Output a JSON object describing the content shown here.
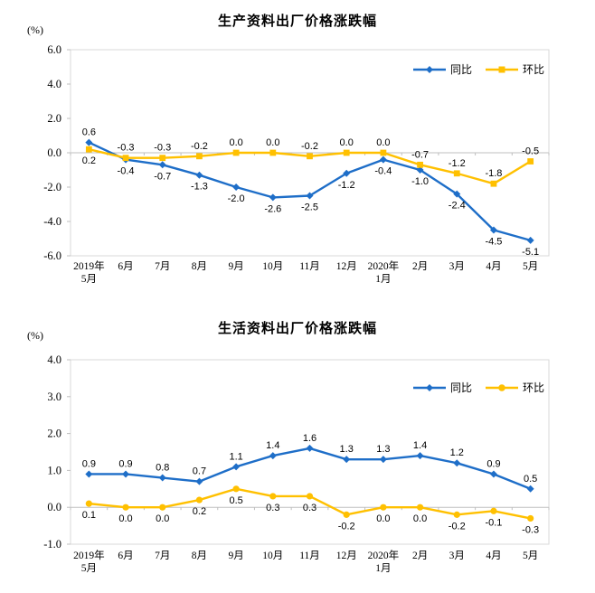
{
  "page": {
    "background": "#ffffff"
  },
  "chart_data": [
    {
      "type": "line",
      "title": "生产资料出厂价格涨跌幅",
      "unit_label": "(%)",
      "categories": [
        "2019年\n5月",
        "6月",
        "7月",
        "8月",
        "9月",
        "10月",
        "11月",
        "12月",
        "2020年\n1月",
        "2月",
        "3月",
        "4月",
        "5月"
      ],
      "series": [
        {
          "name": "同比",
          "color": "#1e6ec8",
          "marker": "diamond",
          "values": [
            0.6,
            -0.4,
            -0.7,
            -1.3,
            -2.0,
            -2.6,
            -2.5,
            -1.2,
            -0.4,
            -1.0,
            -2.4,
            -4.5,
            -5.1
          ]
        },
        {
          "name": "环比",
          "color": "#ffc000",
          "marker": "square",
          "values": [
            0.2,
            -0.3,
            -0.3,
            -0.2,
            0.0,
            0.0,
            -0.2,
            0.0,
            0.0,
            -0.7,
            -1.2,
            -1.8,
            -0.5
          ]
        }
      ],
      "ylim": [
        -6.0,
        6.0
      ],
      "yticks": [
        6.0,
        4.0,
        2.0,
        0.0,
        -2.0,
        -4.0,
        -6.0
      ],
      "grid": false,
      "legend_position": "top-right-inside",
      "axis_color": "#bfbfbf",
      "border_color": "#d9d9d9"
    },
    {
      "type": "line",
      "title": "生活资料出厂价格涨跌幅",
      "unit_label": "(%)",
      "categories": [
        "2019年\n5月",
        "6月",
        "7月",
        "8月",
        "9月",
        "10月",
        "11月",
        "12月",
        "2020年\n1月",
        "2月",
        "3月",
        "4月",
        "5月"
      ],
      "series": [
        {
          "name": "同比",
          "color": "#1e6ec8",
          "marker": "diamond",
          "values": [
            0.9,
            0.9,
            0.8,
            0.7,
            1.1,
            1.4,
            1.6,
            1.3,
            1.3,
            1.4,
            1.2,
            0.9,
            0.5
          ]
        },
        {
          "name": "环比",
          "color": "#ffc000",
          "marker": "circle",
          "values": [
            0.1,
            0.0,
            0.0,
            0.2,
            0.5,
            0.3,
            0.3,
            -0.2,
            0.0,
            0.0,
            -0.2,
            -0.1,
            -0.3
          ]
        }
      ],
      "ylim": [
        -1.0,
        4.0
      ],
      "yticks": [
        4.0,
        3.0,
        2.0,
        1.0,
        0.0,
        -1.0
      ],
      "grid": false,
      "legend_position": "top-right-inside",
      "axis_color": "#bfbfbf",
      "border_color": "#d9d9d9"
    }
  ]
}
